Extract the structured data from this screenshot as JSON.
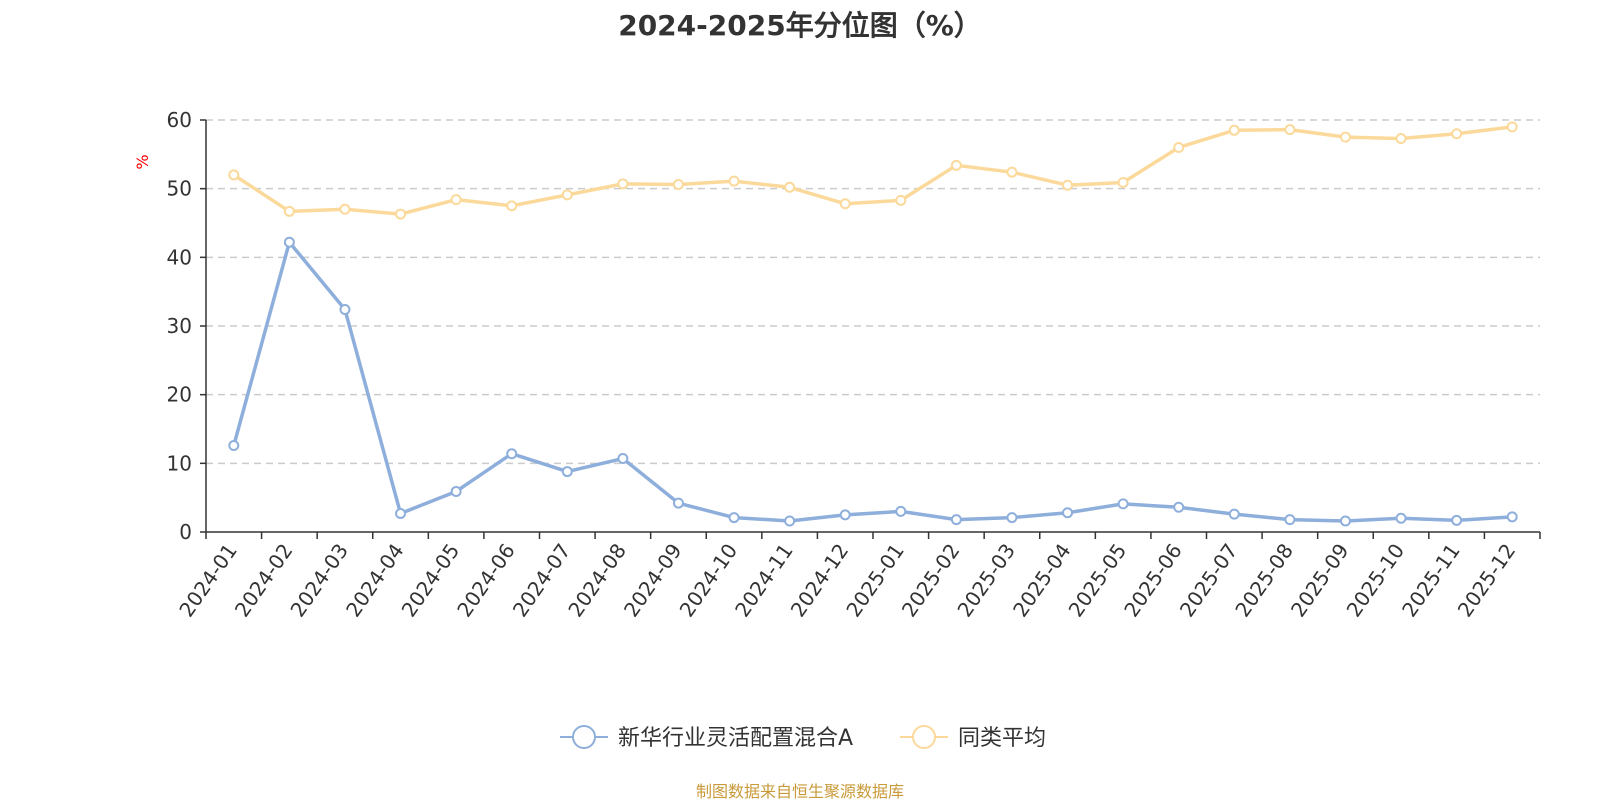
{
  "chart_data": {
    "type": "line",
    "title": "2024-2025年分位图（%）",
    "ylabel": "%",
    "ylim": [
      0,
      60
    ],
    "yticks": [
      0,
      10,
      20,
      30,
      40,
      50,
      60
    ],
    "grid": true,
    "legend_position": "bottom-center",
    "categories": [
      "2024-01",
      "2024-02",
      "2024-03",
      "2024-04",
      "2024-05",
      "2024-06",
      "2024-07",
      "2024-08",
      "2024-09",
      "2024-10",
      "2024-11",
      "2024-12",
      "2025-01",
      "2025-02",
      "2025-03",
      "2025-04",
      "2025-05",
      "2025-06",
      "2025-07",
      "2025-08",
      "2025-09",
      "2025-10",
      "2025-11",
      "2025-12"
    ],
    "series": [
      {
        "name": "新华行业灵活配置混合A",
        "color": "#8eaedb",
        "values": [
          12.6,
          42.2,
          32.4,
          2.7,
          5.9,
          11.4,
          8.8,
          10.7,
          4.2,
          2.1,
          1.6,
          2.5,
          3.0,
          1.8,
          2.1,
          2.8,
          4.1,
          3.6,
          2.6,
          1.8,
          1.6,
          2.0,
          1.7,
          2.2
        ]
      },
      {
        "name": "同类平均",
        "color": "#fbd99b",
        "values": [
          52.0,
          46.7,
          47.0,
          46.3,
          48.4,
          47.5,
          49.1,
          50.7,
          50.6,
          51.1,
          50.2,
          47.8,
          48.3,
          53.4,
          52.4,
          50.5,
          50.9,
          56.0,
          58.5,
          58.6,
          57.5,
          57.3,
          58.0,
          59.0
        ]
      }
    ]
  },
  "source_note": "制图数据来自恒生聚源数据库",
  "colors": {
    "axis": "#333333",
    "grid": "#cccccc",
    "unit_label": "#ff0000"
  }
}
